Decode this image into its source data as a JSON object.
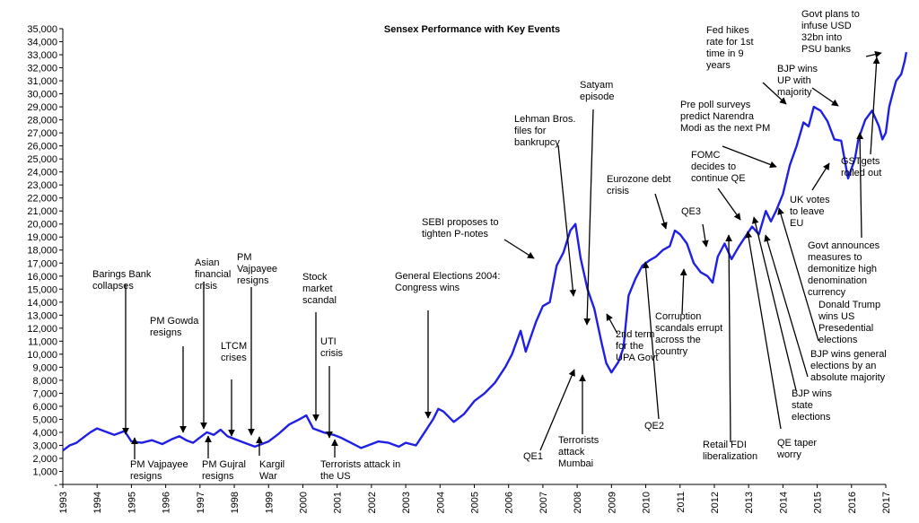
{
  "chart_data": {
    "type": "line",
    "title": "Sensex Performance with Key Events",
    "xlabel": "",
    "ylabel": "",
    "ylim": [
      0,
      35000
    ],
    "xlim": [
      1993,
      2017
    ],
    "grid": false,
    "legend": "none",
    "line_color": "#1f1fe6",
    "y_ticks": [
      "-",
      "1,000",
      "2,000",
      "3,000",
      "4,000",
      "5,000",
      "6,000",
      "7,000",
      "8,000",
      "9,000",
      "10,000",
      "11,000",
      "12,000",
      "13,000",
      "14,000",
      "15,000",
      "16,000",
      "17,000",
      "18,000",
      "19,000",
      "20,000",
      "21,000",
      "22,000",
      "23,000",
      "24,000",
      "25,000",
      "26,000",
      "27,000",
      "28,000",
      "29,000",
      "30,000",
      "31,000",
      "32,000",
      "33,000",
      "34,000",
      "35,000"
    ],
    "x_ticks": [
      "1993",
      "1994",
      "1995",
      "1996",
      "1997",
      "1998",
      "1999",
      "2000",
      "2001",
      "2002",
      "2003",
      "2004",
      "2005",
      "2006",
      "2007",
      "2008",
      "2009",
      "2010",
      "2011",
      "2012",
      "2013",
      "2014",
      "2015",
      "2016",
      "2017"
    ],
    "series": [
      {
        "x": [
          1993.0,
          1993.2,
          1993.4,
          1993.6,
          1993.8,
          1994.0,
          1994.2,
          1994.5,
          1994.8,
          1995.0,
          1995.3,
          1995.6,
          1995.9,
          1996.2,
          1996.4,
          1996.6,
          1996.8,
          1997.0,
          1997.2,
          1997.4,
          1997.6,
          1997.8,
          1998.0,
          1998.3,
          1998.6,
          1998.8,
          1999.0,
          1999.3,
          1999.6,
          1999.9,
          2000.1,
          2000.3,
          2000.6,
          2000.9,
          2001.1,
          2001.4,
          2001.7,
          2001.9,
          2002.2,
          2002.5,
          2002.8,
          2003.0,
          2003.3,
          2003.5,
          2003.8,
          2003.95,
          2004.1,
          2004.4,
          2004.7,
          2005.0,
          2005.3,
          2005.6,
          2005.9,
          2006.1,
          2006.35,
          2006.5,
          2006.8,
          2007.0,
          2007.2,
          2007.4,
          2007.6,
          2007.8,
          2007.95,
          2008.1,
          2008.3,
          2008.5,
          2008.7,
          2008.85,
          2009.0,
          2009.2,
          2009.35,
          2009.5,
          2009.7,
          2009.9,
          2010.1,
          2010.3,
          2010.5,
          2010.7,
          2010.85,
          2011.0,
          2011.2,
          2011.4,
          2011.6,
          2011.8,
          2011.95,
          2012.1,
          2012.3,
          2012.5,
          2012.7,
          2012.9,
          2013.1,
          2013.3,
          2013.5,
          2013.65,
          2013.8,
          2014.0,
          2014.2,
          2014.4,
          2014.6,
          2014.75,
          2014.9,
          2015.1,
          2015.3,
          2015.5,
          2015.7,
          2015.9,
          2016.1,
          2016.2,
          2016.4,
          2016.6,
          2016.8,
          2016.9,
          2017.0,
          2017.1,
          2017.2,
          2017.3,
          2017.45,
          2017.55,
          2017.6
        ],
        "values": [
          2600,
          3000,
          3200,
          3600,
          4000,
          4300,
          4100,
          3800,
          4100,
          3300,
          3200,
          3400,
          3100,
          3500,
          3700,
          3400,
          3200,
          3600,
          4000,
          3800,
          4200,
          3700,
          3500,
          3200,
          2900,
          3100,
          3300,
          3900,
          4600,
          5000,
          5300,
          4300,
          4000,
          3800,
          3600,
          3200,
          2800,
          3000,
          3300,
          3200,
          2900,
          3200,
          3000,
          3800,
          5000,
          5800,
          5600,
          4800,
          5400,
          6400,
          7000,
          7800,
          9000,
          10000,
          11800,
          10200,
          12500,
          13700,
          14000,
          16800,
          17800,
          19500,
          20000,
          17400,
          15000,
          13500,
          11000,
          9300,
          8600,
          9400,
          10500,
          14500,
          15800,
          16800,
          17200,
          17500,
          18000,
          18300,
          19500,
          19200,
          18500,
          17000,
          16300,
          16000,
          15500,
          17500,
          18500,
          17300,
          18200,
          19000,
          19800,
          19200,
          21000,
          20200,
          21000,
          22300,
          24500,
          26000,
          27800,
          27500,
          29000,
          28700,
          27900,
          26500,
          26400,
          23500,
          25000,
          26500,
          28000,
          28700,
          27500,
          26500,
          27000,
          29000,
          30000,
          31000,
          31500,
          32500,
          33200
        ]
      }
    ],
    "annotations": [
      {
        "lines": [
          "Barings Bank",
          "collapses"
        ]
      },
      {
        "lines": [
          "PM  Gowda",
          "resigns"
        ]
      },
      {
        "lines": [
          "Asian",
          "financial",
          "crisis"
        ]
      },
      {
        "lines": [
          "LTCM",
          "crises"
        ]
      },
      {
        "lines": [
          "PM",
          "Vajpayee",
          "resigns"
        ]
      },
      {
        "lines": [
          "Stock",
          "market",
          "scandal"
        ]
      },
      {
        "lines": [
          "UTI",
          "crisis"
        ]
      },
      {
        "lines": [
          "General Elections 2004:",
          "Congress wins"
        ]
      },
      {
        "lines": [
          "SEBI proposes to",
          "tighten P-notes"
        ]
      },
      {
        "lines": [
          "Lehman Bros.",
          "files for",
          "bankrupcy"
        ]
      },
      {
        "lines": [
          "Satyam",
          "episode"
        ]
      },
      {
        "lines": [
          "Eurozone debt",
          "crisis"
        ]
      },
      {
        "lines": [
          "QE3"
        ]
      },
      {
        "lines": [
          "FOMC",
          "decides to",
          "continue QE"
        ]
      },
      {
        "lines": [
          "Pre poll surveys",
          "predict Narendra",
          "Modi as the next PM"
        ]
      },
      {
        "lines": [
          "Fed hikes",
          "rate for 1st",
          "time in 9",
          "years"
        ]
      },
      {
        "lines": [
          "Govt plans to",
          "infuse USD",
          "32bn into",
          "PSU  banks"
        ]
      },
      {
        "lines": [
          "BJP  wins",
          "UP  with",
          "majority"
        ]
      },
      {
        "lines": [
          "UK votes",
          "to leave",
          "EU"
        ]
      },
      {
        "lines": [
          "GSTgets",
          "rolled out"
        ]
      },
      {
        "lines": [
          "Govt announces",
          "measures to",
          "demonitize high",
          "denomination",
          "currency"
        ]
      },
      {
        "lines": [
          "Donald Trump",
          "wins US",
          "Presedential",
          "elections"
        ]
      },
      {
        "lines": [
          "BJP  wins general",
          "elections by an",
          "absolute majority"
        ]
      },
      {
        "lines": [
          "BJP  wins",
          "state",
          "elections"
        ]
      },
      {
        "lines": [
          "QE taper",
          "worry"
        ]
      },
      {
        "lines": [
          "Retail FDI",
          "liberalization"
        ]
      },
      {
        "lines": [
          "QE2"
        ]
      },
      {
        "lines": [
          "Corruption",
          "scandals errupt",
          "across the",
          "country"
        ]
      },
      {
        "lines": [
          "2nd term",
          "for the",
          "UPA Govt"
        ]
      },
      {
        "lines": [
          "Terrorists",
          "attack",
          "Mumbai"
        ]
      },
      {
        "lines": [
          "QE1"
        ]
      },
      {
        "lines": [
          "Terrorists attack in",
          "the US"
        ]
      },
      {
        "lines": [
          "Kargil",
          "War"
        ]
      },
      {
        "lines": [
          "PM  Gujral",
          "resigns"
        ]
      },
      {
        "lines": [
          "PM  Vajpayee",
          "resigns"
        ]
      }
    ]
  }
}
